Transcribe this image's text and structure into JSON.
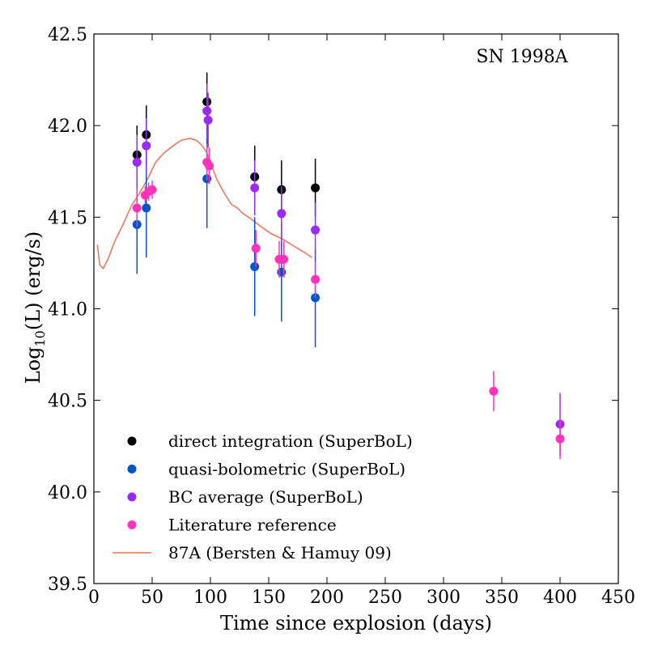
{
  "chart_data": {
    "type": "scatter",
    "annotation": "SN 1998A",
    "xlabel": "Time since explosion (days)",
    "ylabel_main": "Log",
    "ylabel_sub": "10",
    "ylabel_rest": "(L) (erg/s)",
    "xlim": [
      0,
      450
    ],
    "ylim": [
      39.5,
      42.5
    ],
    "xticks": [
      0,
      50,
      100,
      150,
      200,
      250,
      300,
      350,
      400,
      450
    ],
    "xtick_labels": [
      "0",
      "50",
      "100",
      "150",
      "200",
      "250",
      "300",
      "350",
      "400",
      "450"
    ],
    "yticks": [
      39.5,
      40.0,
      40.5,
      41.0,
      41.5,
      42.0,
      42.5
    ],
    "ytick_labels": [
      "39.5",
      "40.0",
      "40.5",
      "41.0",
      "41.5",
      "42.0",
      "42.5"
    ],
    "grid": false,
    "legend_position": "lower-left",
    "series": [
      {
        "name": "direct integration (SuperBoL)",
        "color": "#000000",
        "kind": "points",
        "points": [
          {
            "x": 37,
            "y": 41.84,
            "err": 0.16
          },
          {
            "x": 45,
            "y": 41.95,
            "err": 0.16
          },
          {
            "x": 97,
            "y": 42.13,
            "err": 0.16
          },
          {
            "x": 138,
            "y": 41.72,
            "err": 0.17
          },
          {
            "x": 161,
            "y": 41.65,
            "err": 0.16
          },
          {
            "x": 190,
            "y": 41.66,
            "err": 0.16
          }
        ]
      },
      {
        "name": "quasi-bolometric (SuperBoL)",
        "color": "#0055cc",
        "kind": "points",
        "points": [
          {
            "x": 37,
            "y": 41.46,
            "err": 0.27
          },
          {
            "x": 45,
            "y": 41.55,
            "err": 0.27
          },
          {
            "x": 97,
            "y": 41.71,
            "err": 0.27
          },
          {
            "x": 138,
            "y": 41.23,
            "err": 0.27
          },
          {
            "x": 161,
            "y": 41.2,
            "err": 0.27
          },
          {
            "x": 190,
            "y": 41.06,
            "err": 0.27
          }
        ]
      },
      {
        "name": "BC average (SuperBoL)",
        "color": "#9a2cf2",
        "kind": "points",
        "points": [
          {
            "x": 37,
            "y": 41.8,
            "err": 0.15
          },
          {
            "x": 45,
            "y": 41.89,
            "err": 0.15
          },
          {
            "x": 97,
            "y": 42.08,
            "err": 0.15
          },
          {
            "x": 98,
            "y": 42.03,
            "err": 0.15
          },
          {
            "x": 138,
            "y": 41.66,
            "err": 0.15
          },
          {
            "x": 161,
            "y": 41.52,
            "err": 0.15
          },
          {
            "x": 190,
            "y": 41.43,
            "err": 0.15
          },
          {
            "x": 400,
            "y": 40.37,
            "err": 0.17
          }
        ]
      },
      {
        "name": "Literature reference",
        "color": "#ff33bb",
        "kind": "points",
        "points": [
          {
            "x": 37,
            "y": 41.55,
            "err": 0.1
          },
          {
            "x": 44,
            "y": 41.62,
            "err": 0.05
          },
          {
            "x": 47,
            "y": 41.64,
            "err": 0.05
          },
          {
            "x": 50,
            "y": 41.65,
            "err": 0.05
          },
          {
            "x": 97,
            "y": 41.8,
            "err": 0.1
          },
          {
            "x": 99,
            "y": 41.78,
            "err": 0.1
          },
          {
            "x": 139,
            "y": 41.33,
            "err": 0.1
          },
          {
            "x": 159,
            "y": 41.27,
            "err": 0.1
          },
          {
            "x": 163,
            "y": 41.27,
            "err": 0.1
          },
          {
            "x": 190,
            "y": 41.16,
            "err": 0.1
          },
          {
            "x": 343,
            "y": 40.55,
            "err": 0.11
          },
          {
            "x": 400,
            "y": 40.29,
            "err": 0.11
          }
        ]
      },
      {
        "name": "87A (Bersten & Hamuy 09)",
        "color": "#f07055",
        "kind": "line",
        "x": [
          3,
          5,
          8,
          12,
          18,
          25,
          32,
          40,
          47,
          53,
          60,
          68,
          75,
          82,
          88,
          93,
          97,
          101,
          106,
          112,
          118,
          123,
          128,
          135,
          143,
          152,
          162,
          172,
          180,
          187
        ],
        "y": [
          41.35,
          41.24,
          41.22,
          41.27,
          41.37,
          41.46,
          41.56,
          41.64,
          41.72,
          41.8,
          41.85,
          41.89,
          41.92,
          41.93,
          41.92,
          41.89,
          41.85,
          41.78,
          41.7,
          41.63,
          41.57,
          41.55,
          41.52,
          41.49,
          41.45,
          41.41,
          41.38,
          41.34,
          41.31,
          41.28
        ]
      }
    ]
  }
}
